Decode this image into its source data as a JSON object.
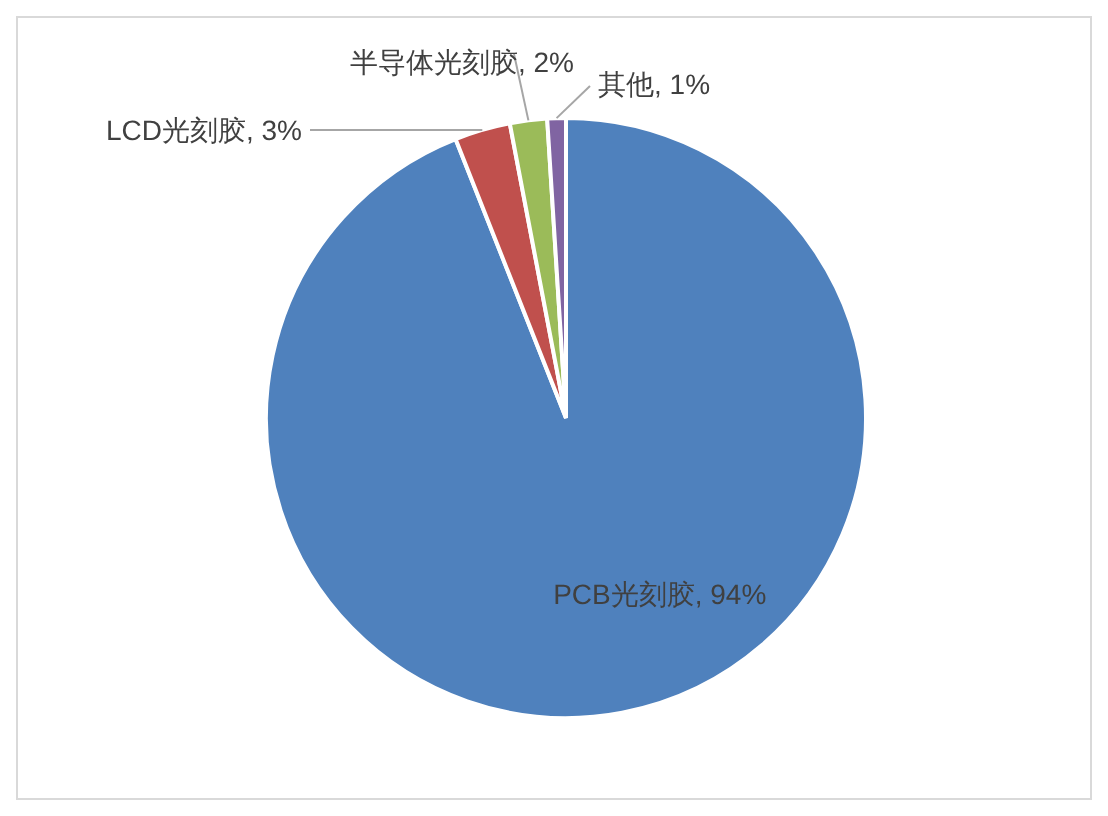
{
  "chart_data": {
    "type": "pie",
    "categories": [
      "PCB光刻胶",
      "LCD光刻胶",
      "半导体光刻胶",
      "其他"
    ],
    "values": [
      94,
      3,
      2,
      1
    ],
    "value_labels": [
      "94%",
      "3%",
      "2%",
      "1%"
    ],
    "colors": [
      "#4f81bd",
      "#c0504d",
      "#9bbb59",
      "#8064a2"
    ]
  }
}
